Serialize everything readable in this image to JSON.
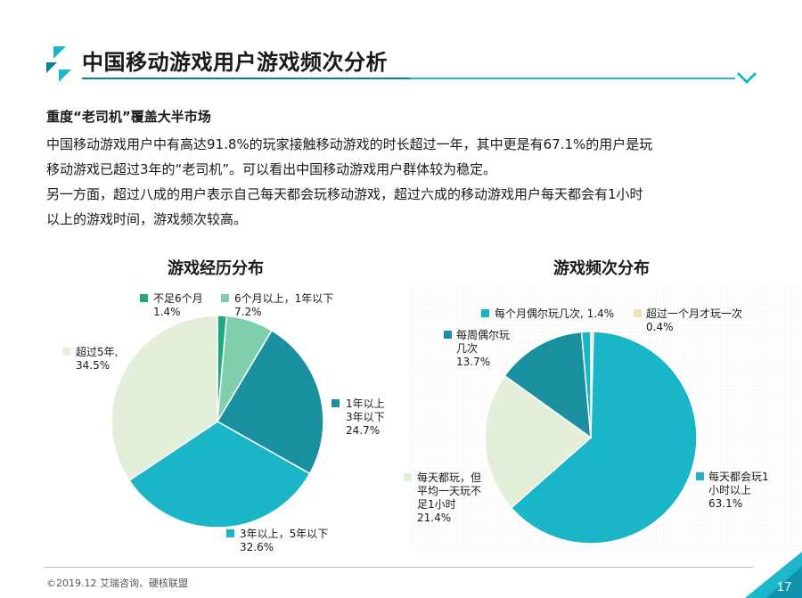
{
  "header": {
    "title": "中国移动游戏用户游戏频次分析"
  },
  "section": {
    "subtitle": "重度“老司机”覆盖大半市场",
    "paragraphs": [
      "中国移动游戏用户中有高达91.8%的玩家接触移动游戏的时长超过一年，其中更是有67.1%的用户是玩",
      "移动游戏已超过3年的“老司机”。可以看出中国移动游戏用户群体较为稳定。",
      "另一方面，超过八成的用户表示自己每天都会玩移动游戏，超过六成的移动游戏用户每天都会有1小时",
      "以上的游戏时间，游戏频次较高。"
    ]
  },
  "chart_data": [
    {
      "type": "pie",
      "title": "游戏经历分布",
      "slices": [
        {
          "label_lines": [
            "不足6个月",
            "1.4%"
          ],
          "value": 1.4,
          "color": "#1fa882"
        },
        {
          "label_lines": [
            "6个月以上，1年以下",
            "7.2%"
          ],
          "value": 7.2,
          "color": "#7fcfad"
        },
        {
          "label_lines": [
            "1年以上",
            "3年以下",
            "24.7%"
          ],
          "value": 24.7,
          "color": "#1a8fa0"
        },
        {
          "label_lines": [
            "3年以上，5年以下",
            "32.6%"
          ],
          "value": 32.6,
          "color": "#1ab5c6"
        },
        {
          "label_lines": [
            "超过5年,",
            "34.5%"
          ],
          "value": 34.5,
          "color": "#e3efd9"
        }
      ]
    },
    {
      "type": "pie",
      "title": "游戏频次分布",
      "slices": [
        {
          "label_lines": [
            "超过一个月才玩一次",
            "0.4%"
          ],
          "value": 0.4,
          "color": "#f5dfb5"
        },
        {
          "label_lines": [
            "每天都会玩1",
            "小时以上",
            "63.1%"
          ],
          "value": 63.1,
          "color": "#1ab5c6"
        },
        {
          "label_lines": [
            "每天都玩，但",
            "平均一天玩不",
            "足1小时",
            "21.4%"
          ],
          "value": 21.4,
          "color": "#e3efd9"
        },
        {
          "label_lines": [
            "每周偶尔玩",
            "几次",
            "13.7%"
          ],
          "value": 13.7,
          "color": "#1a8fa0"
        },
        {
          "label_lines": [
            "每个月偶尔玩几次, 1.4%"
          ],
          "value": 1.4,
          "color": "#1ab5c6"
        }
      ]
    }
  ],
  "footer": {
    "source": "©2019.12  艾瑞咨询、硬核联盟",
    "page_number": "17"
  }
}
